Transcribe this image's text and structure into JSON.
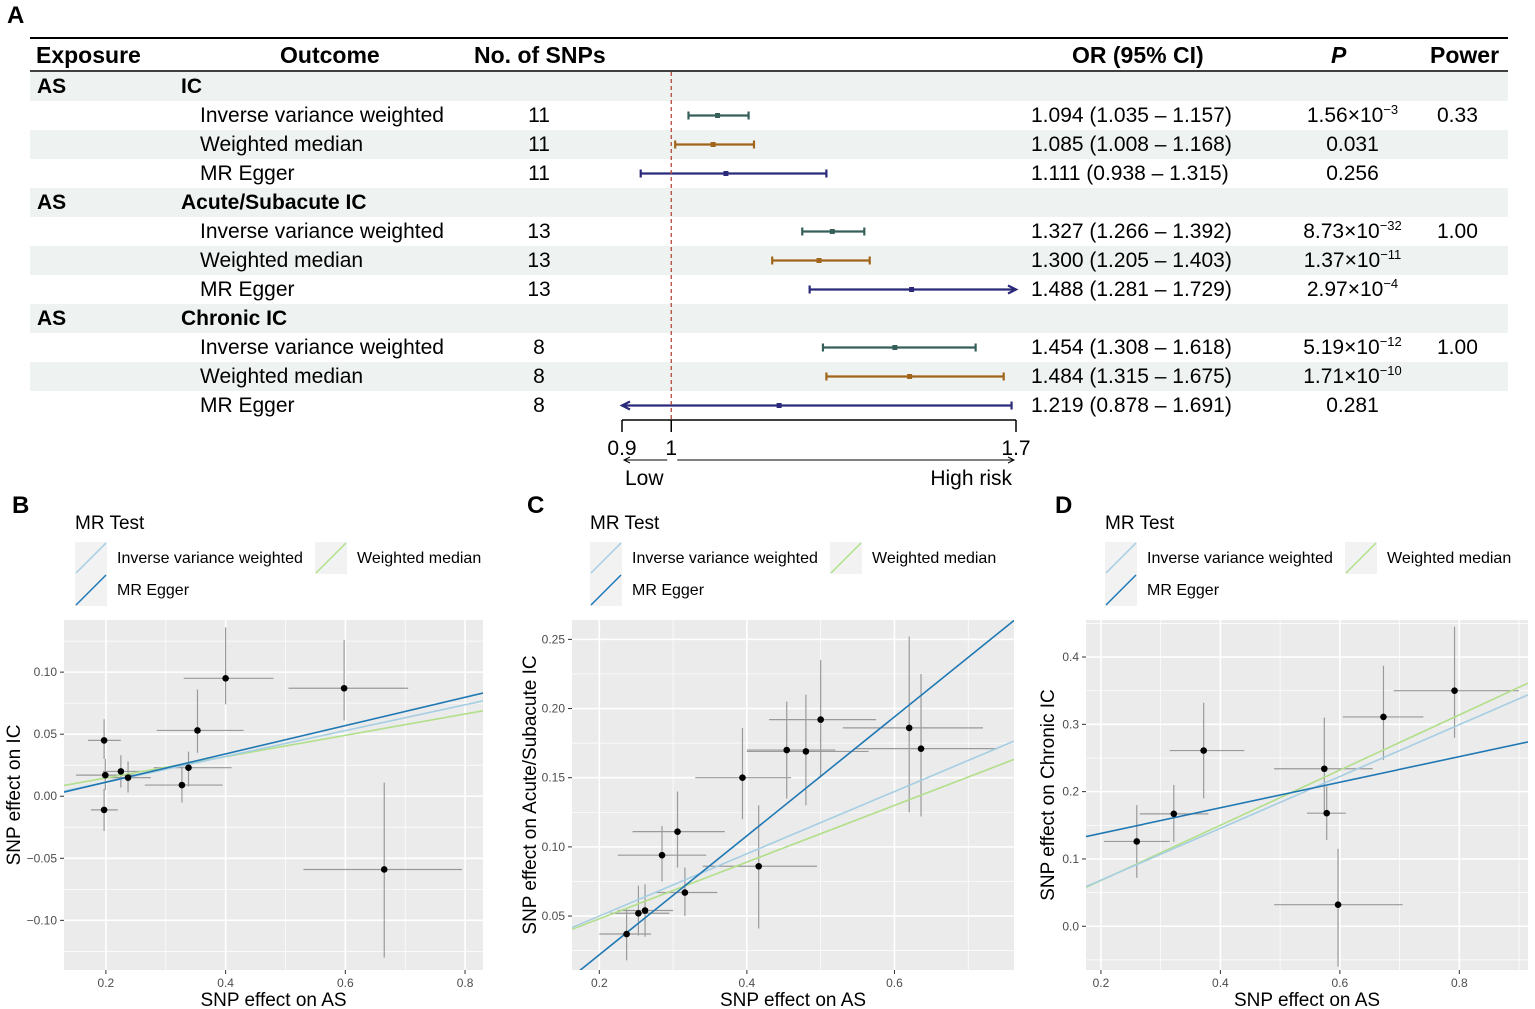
{
  "panel_letters": {
    "a": "A",
    "b": "B",
    "c": "C",
    "d": "D"
  },
  "forest": {
    "headers": {
      "exposure": "Exposure",
      "outcome": "Outcome",
      "snps": "No. of SNPs",
      "or": "OR (95% CI)",
      "p": "P",
      "power": "Power"
    },
    "groups": [
      {
        "exposure": "AS",
        "outcome": "IC",
        "power": "0.33",
        "rows": [
          {
            "method": "Inverse variance weighted",
            "snps": "11",
            "or_text": "1.094 (1.035 – 1.157)",
            "p_base": "1.56×10",
            "p_exp": "−3",
            "or": 1.094,
            "lo": 1.035,
            "hi": 1.157
          },
          {
            "method": "Weighted median",
            "snps": "11",
            "or_text": "1.085 (1.008 – 1.168)",
            "p_base": "0.031",
            "p_exp": "",
            "or": 1.085,
            "lo": 1.008,
            "hi": 1.168
          },
          {
            "method": "MR Egger",
            "snps": "11",
            "or_text": "1.111 (0.938 – 1.315)",
            "p_base": "0.256",
            "p_exp": "",
            "or": 1.111,
            "lo": 0.938,
            "hi": 1.315
          }
        ]
      },
      {
        "exposure": "AS",
        "outcome": "Acute/Subacute IC",
        "power": "1.00",
        "rows": [
          {
            "method": "Inverse variance weighted",
            "snps": "13",
            "or_text": "1.327 (1.266 – 1.392)",
            "p_base": "8.73×10",
            "p_exp": "−32",
            "or": 1.327,
            "lo": 1.266,
            "hi": 1.392
          },
          {
            "method": "Weighted median",
            "snps": "13",
            "or_text": "1.300 (1.205 – 1.403)",
            "p_base": "1.37×10",
            "p_exp": "−11",
            "or": 1.3,
            "lo": 1.205,
            "hi": 1.403
          },
          {
            "method": "MR Egger",
            "snps": "13",
            "or_text": "1.488 (1.281 – 1.729)",
            "p_base": "2.97×10",
            "p_exp": "−4",
            "or": 1.488,
            "lo": 1.281,
            "hi": 1.729
          }
        ]
      },
      {
        "exposure": "AS",
        "outcome": "Chronic IC",
        "power": "1.00",
        "rows": [
          {
            "method": "Inverse variance weighted",
            "snps": "8",
            "or_text": "1.454 (1.308 – 1.618)",
            "p_base": "5.19×10",
            "p_exp": "−12",
            "or": 1.454,
            "lo": 1.308,
            "hi": 1.618
          },
          {
            "method": "Weighted median",
            "snps": "8",
            "or_text": "1.484 (1.315 – 1.675)",
            "p_base": "1.71×10",
            "p_exp": "−10",
            "or": 1.484,
            "lo": 1.315,
            "hi": 1.675
          },
          {
            "method": "MR Egger",
            "snps": "8",
            "or_text": "1.219 (0.878 – 1.691)",
            "p_base": "0.281",
            "p_exp": "",
            "or": 1.219,
            "lo": 0.878,
            "hi": 1.691
          }
        ]
      }
    ],
    "axis": {
      "min": 0.9,
      "max": 1.7,
      "ref": 1,
      "tick_labels": [
        "0.9",
        "1",
        "1.7"
      ],
      "low_label": "Low",
      "high_label": "High risk"
    },
    "colors": {
      "Inverse variance weighted": "#365f5a",
      "Weighted median": "#a0651a",
      "MR Egger": "#2b2a7a",
      "ref_line": "#b5473a"
    }
  },
  "scatter_legend": {
    "title": "MR Test",
    "ivw": "Inverse variance weighted",
    "wm": "Weighted median",
    "egger": "MR Egger",
    "colors": {
      "ivw": "#a6cee3",
      "wm": "#b2df8a",
      "egger": "#1f78b4"
    }
  },
  "chart_data": [
    {
      "type": "scatter",
      "panel": "B",
      "xlabel": "SNP effect on AS",
      "ylabel": "SNP effect on IC",
      "xlim": [
        0.13,
        0.83
      ],
      "ylim": [
        -0.14,
        0.142
      ],
      "xticks": [
        0.2,
        0.4,
        0.6,
        0.8
      ],
      "xtick_labels": [
        "0.2",
        "0.4",
        "0.6",
        "0.8"
      ],
      "yticks": [
        -0.1,
        -0.05,
        0,
        0.05,
        0.1
      ],
      "ytick_labels": [
        "−0.10",
        "−0.05",
        "0.00",
        "0.05",
        "0.10"
      ],
      "points": [
        {
          "x": 0.197,
          "y": 0.045,
          "xlo": 0.17,
          "xhi": 0.225,
          "ylo": 0.03,
          "yhi": 0.062
        },
        {
          "x": 0.197,
          "y": -0.011,
          "xlo": 0.175,
          "xhi": 0.22,
          "ylo": -0.028,
          "yhi": 0.006
        },
        {
          "x": 0.199,
          "y": 0.017,
          "xlo": 0.15,
          "xhi": 0.25,
          "ylo": 0.005,
          "yhi": 0.03
        },
        {
          "x": 0.225,
          "y": 0.02,
          "xlo": 0.195,
          "xhi": 0.26,
          "ylo": 0.007,
          "yhi": 0.033
        },
        {
          "x": 0.237,
          "y": 0.015,
          "xlo": 0.2,
          "xhi": 0.275,
          "ylo": 0.003,
          "yhi": 0.028
        },
        {
          "x": 0.327,
          "y": 0.009,
          "xlo": 0.265,
          "xhi": 0.395,
          "ylo": -0.005,
          "yhi": 0.024
        },
        {
          "x": 0.338,
          "y": 0.023,
          "xlo": 0.28,
          "xhi": 0.41,
          "ylo": 0.008,
          "yhi": 0.036
        },
        {
          "x": 0.353,
          "y": 0.053,
          "xlo": 0.285,
          "xhi": 0.43,
          "ylo": 0.035,
          "yhi": 0.086
        },
        {
          "x": 0.4,
          "y": 0.095,
          "xlo": 0.33,
          "xhi": 0.48,
          "ylo": 0.074,
          "yhi": 0.136
        },
        {
          "x": 0.598,
          "y": 0.087,
          "xlo": 0.505,
          "xhi": 0.705,
          "ylo": 0.061,
          "yhi": 0.126
        },
        {
          "x": 0.665,
          "y": -0.059,
          "xlo": 0.53,
          "xhi": 0.795,
          "ylo": -0.13,
          "yhi": 0.011
        }
      ],
      "lines": {
        "ivw": {
          "intercept": -0.0095,
          "slope": 0.104
        },
        "wm": {
          "intercept": -0.0025,
          "slope": 0.086
        },
        "egger": {
          "intercept": -0.0115,
          "slope": 0.114
        }
      }
    },
    {
      "type": "scatter",
      "panel": "C",
      "xlabel": "SNP effect on AS",
      "ylabel": "SNP effect on Acute/Subacute IC",
      "xlim": [
        0.163,
        0.762
      ],
      "ylim": [
        0.011,
        0.264
      ],
      "xticks": [
        0.2,
        0.4,
        0.6
      ],
      "xtick_labels": [
        "0.2",
        "0.4",
        "0.6"
      ],
      "yticks": [
        0.05,
        0.1,
        0.15,
        0.2,
        0.25
      ],
      "ytick_labels": [
        "0.05",
        "0.10",
        "0.15",
        "0.20",
        "0.25"
      ],
      "points": [
        {
          "x": 0.237,
          "y": 0.037,
          "xlo": 0.2,
          "xhi": 0.27,
          "ylo": 0.018,
          "yhi": 0.055
        },
        {
          "x": 0.253,
          "y": 0.052,
          "xlo": 0.215,
          "xhi": 0.295,
          "ylo": 0.036,
          "yhi": 0.072
        },
        {
          "x": 0.262,
          "y": 0.054,
          "xlo": 0.225,
          "xhi": 0.3,
          "ylo": 0.035,
          "yhi": 0.073
        },
        {
          "x": 0.285,
          "y": 0.094,
          "xlo": 0.225,
          "xhi": 0.345,
          "ylo": 0.075,
          "yhi": 0.115
        },
        {
          "x": 0.306,
          "y": 0.111,
          "xlo": 0.245,
          "xhi": 0.37,
          "ylo": 0.085,
          "yhi": 0.14
        },
        {
          "x": 0.316,
          "y": 0.067,
          "xlo": 0.275,
          "xhi": 0.36,
          "ylo": 0.05,
          "yhi": 0.085
        },
        {
          "x": 0.394,
          "y": 0.15,
          "xlo": 0.33,
          "xhi": 0.46,
          "ylo": 0.12,
          "yhi": 0.186
        },
        {
          "x": 0.416,
          "y": 0.086,
          "xlo": 0.34,
          "xhi": 0.495,
          "ylo": 0.041,
          "yhi": 0.13
        },
        {
          "x": 0.454,
          "y": 0.17,
          "xlo": 0.4,
          "xhi": 0.52,
          "ylo": 0.135,
          "yhi": 0.205
        },
        {
          "x": 0.48,
          "y": 0.169,
          "xlo": 0.4,
          "xhi": 0.565,
          "ylo": 0.13,
          "yhi": 0.21
        },
        {
          "x": 0.5,
          "y": 0.192,
          "xlo": 0.43,
          "xhi": 0.575,
          "ylo": 0.15,
          "yhi": 0.235
        },
        {
          "x": 0.62,
          "y": 0.186,
          "xlo": 0.53,
          "xhi": 0.72,
          "ylo": 0.125,
          "yhi": 0.252
        },
        {
          "x": 0.636,
          "y": 0.171,
          "xlo": 0.545,
          "xhi": 0.74,
          "ylo": 0.122,
          "yhi": 0.225
        }
      ],
      "lines": {
        "ivw": {
          "intercept": 0.005,
          "slope": 0.225
        },
        "wm": {
          "intercept": 0.007,
          "slope": 0.205
        },
        "egger": {
          "intercept": -0.064,
          "slope": 0.43
        }
      }
    },
    {
      "type": "scatter",
      "panel": "D",
      "xlabel": "SNP effect on AS",
      "ylabel": "SNP effect on Chronic IC",
      "xlim": [
        0.175,
        0.915
      ],
      "ylim": [
        -0.065,
        0.455
      ],
      "xticks": [
        0.2,
        0.4,
        0.6,
        0.8
      ],
      "xtick_labels": [
        "0.2",
        "0.4",
        "0.6",
        "0.8"
      ],
      "yticks": [
        0,
        0.1,
        0.2,
        0.3,
        0.4
      ],
      "ytick_labels": [
        "0.0",
        "0.1",
        "0.2",
        "0.3",
        "0.4"
      ],
      "points": [
        {
          "x": 0.26,
          "y": 0.126,
          "xlo": 0.205,
          "xhi": 0.315,
          "ylo": 0.072,
          "yhi": 0.18
        },
        {
          "x": 0.322,
          "y": 0.167,
          "xlo": 0.265,
          "xhi": 0.38,
          "ylo": 0.125,
          "yhi": 0.21
        },
        {
          "x": 0.372,
          "y": 0.261,
          "xlo": 0.315,
          "xhi": 0.44,
          "ylo": 0.19,
          "yhi": 0.332
        },
        {
          "x": 0.574,
          "y": 0.234,
          "xlo": 0.49,
          "xhi": 0.655,
          "ylo": 0.17,
          "yhi": 0.31
        },
        {
          "x": 0.578,
          "y": 0.168,
          "xlo": 0.545,
          "xhi": 0.61,
          "ylo": 0.128,
          "yhi": 0.208
        },
        {
          "x": 0.597,
          "y": 0.032,
          "xlo": 0.49,
          "xhi": 0.705,
          "ylo": -0.06,
          "yhi": 0.115
        },
        {
          "x": 0.673,
          "y": 0.311,
          "xlo": 0.605,
          "xhi": 0.74,
          "ylo": 0.247,
          "yhi": 0.387
        },
        {
          "x": 0.792,
          "y": 0.35,
          "xlo": 0.69,
          "xhi": 0.9,
          "ylo": 0.28,
          "yhi": 0.445
        }
      ],
      "lines": {
        "ivw": {
          "intercept": -0.0085,
          "slope": 0.385
        },
        "wm": {
          "intercept": -0.014,
          "slope": 0.41
        },
        "egger": {
          "intercept": 0.1,
          "slope": 0.19
        }
      }
    }
  ]
}
